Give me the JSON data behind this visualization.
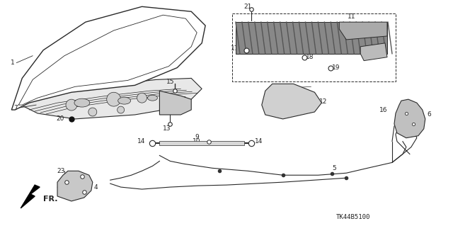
{
  "bg_color": "#ffffff",
  "diagram_code": "TK44B5100",
  "fr_label": "FR.",
  "line_color": "#2a2a2a",
  "text_color": "#222222",
  "font_size": 6.5
}
